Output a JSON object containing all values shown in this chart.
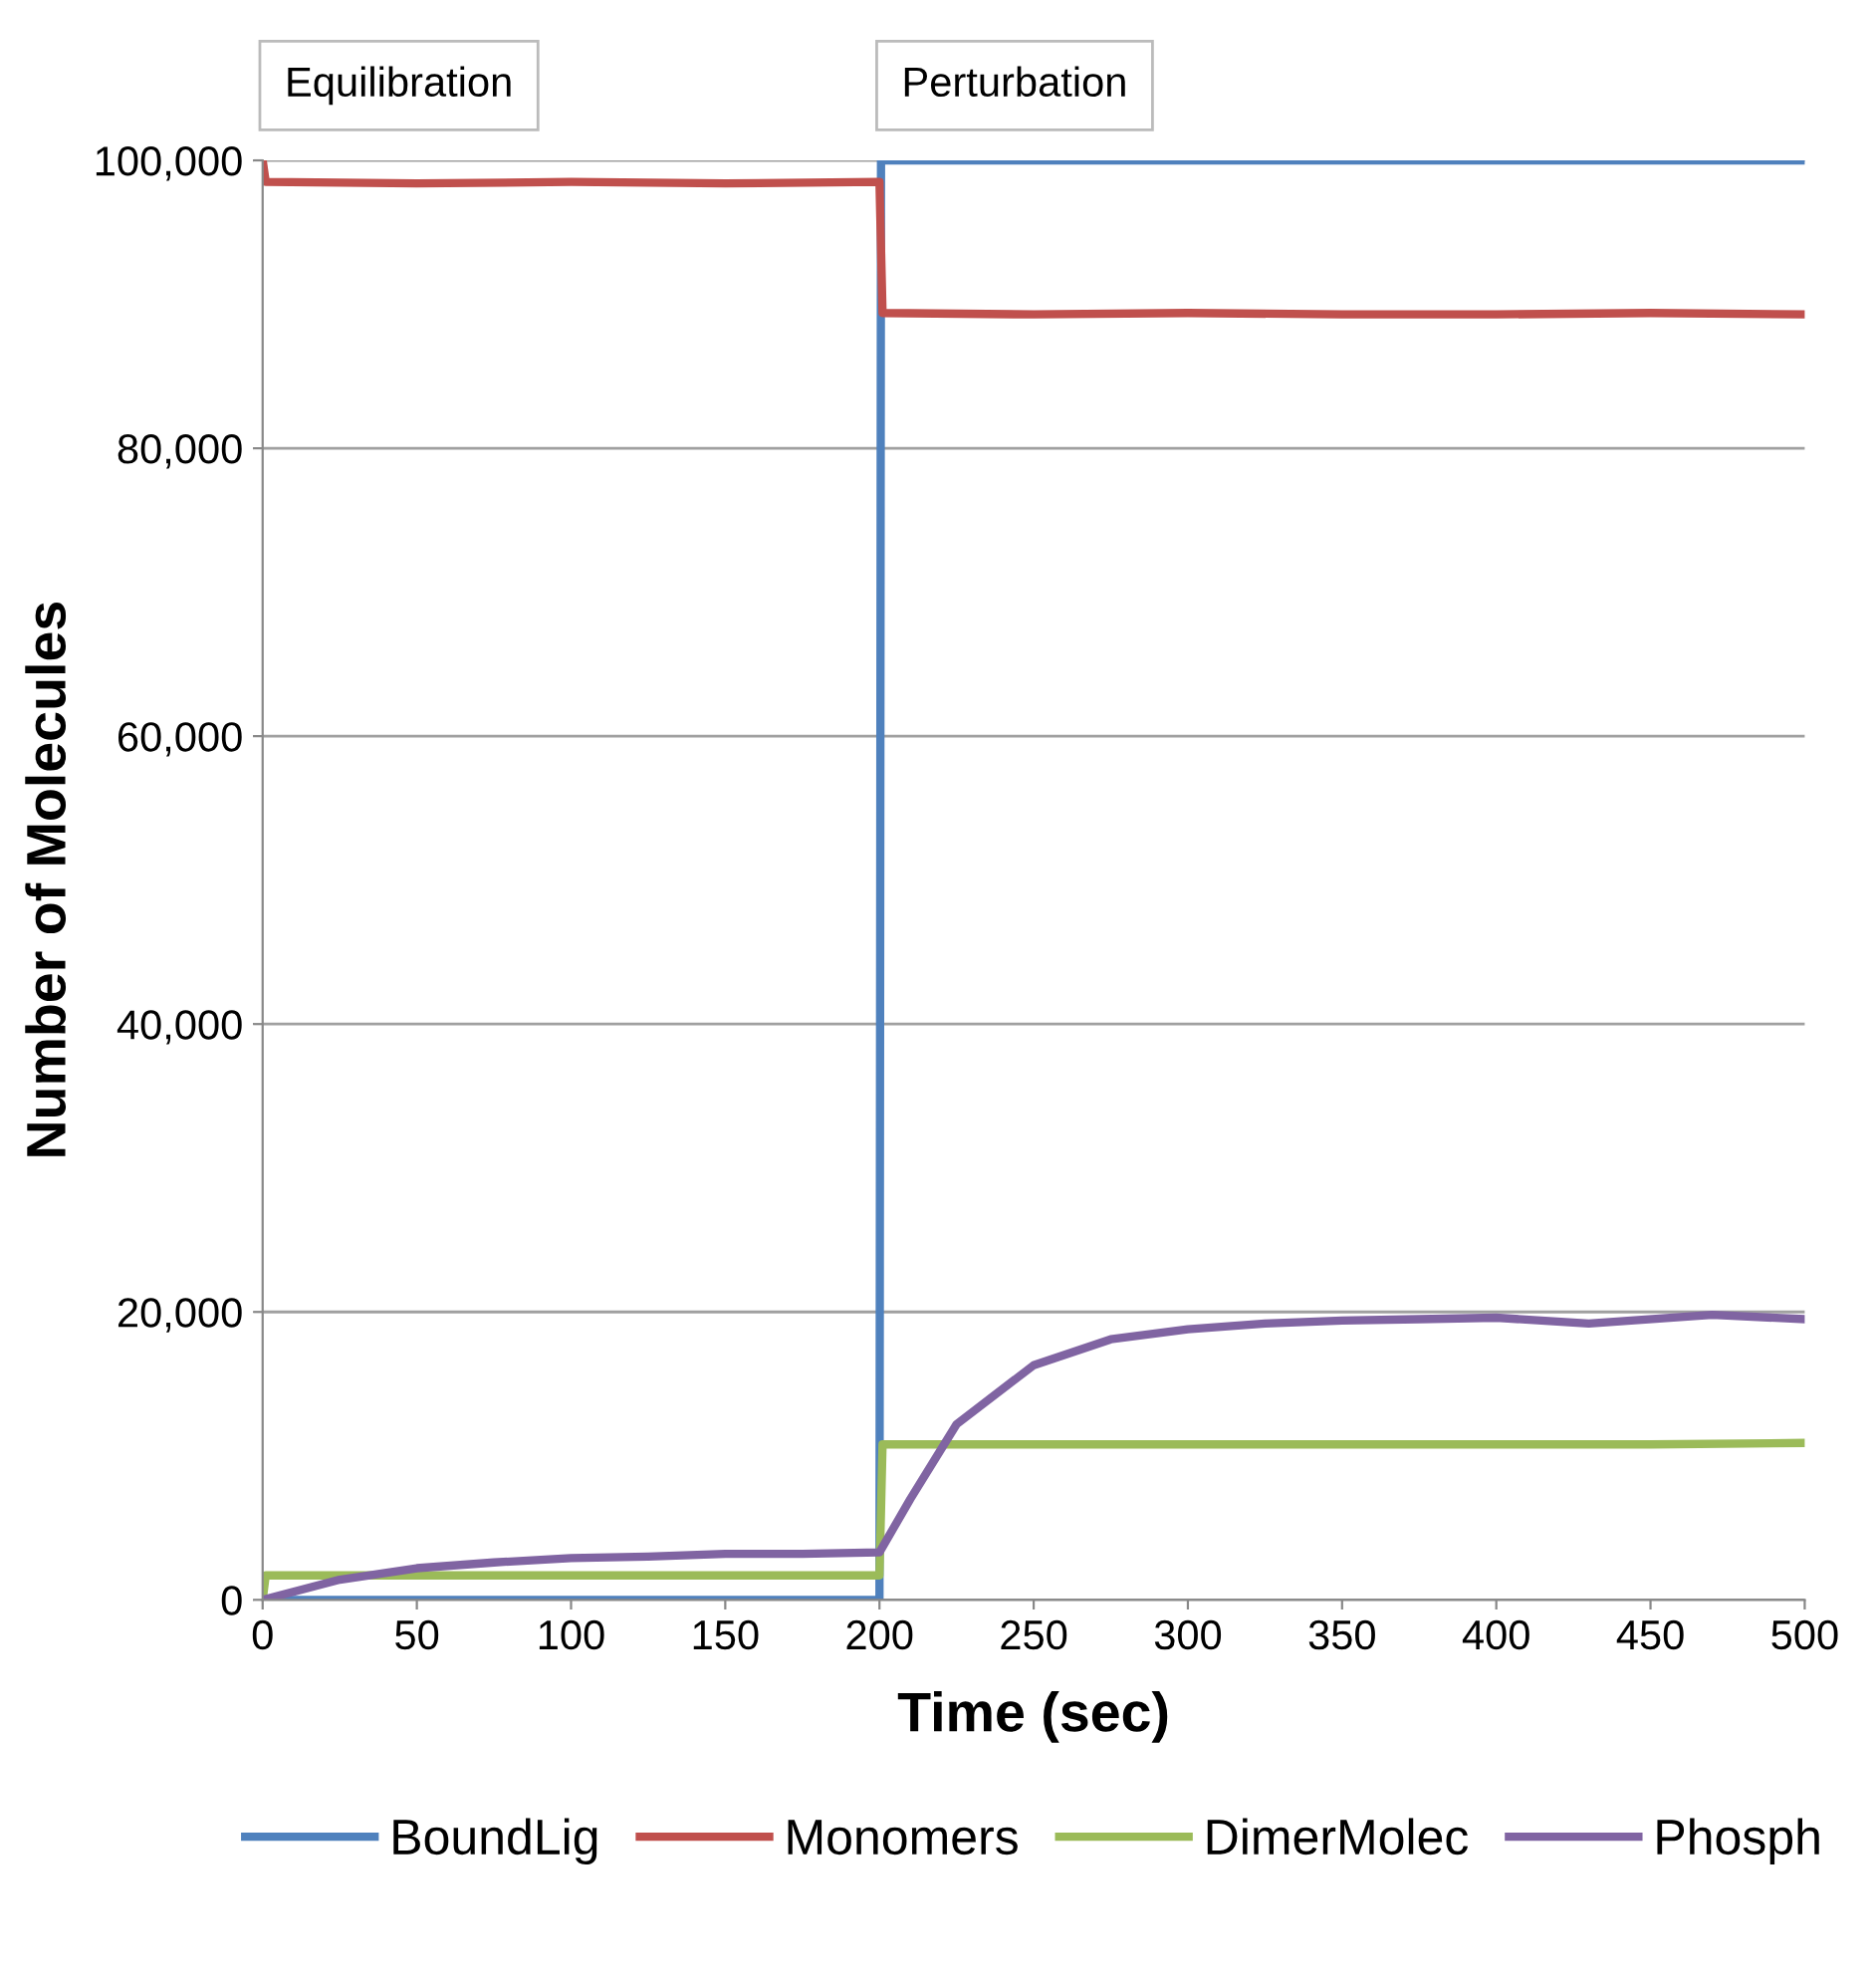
{
  "chart_data": {
    "type": "line",
    "xlabel": "Time (sec)",
    "ylabel": "Number of Molecules",
    "xlim": [
      0,
      500
    ],
    "xticks": [
      0,
      50,
      100,
      150,
      200,
      250,
      300,
      350,
      400,
      450,
      500
    ],
    "ylim": [
      0,
      100000
    ],
    "yticks": [
      {
        "value": 0,
        "label": "0"
      },
      {
        "value": 20000,
        "label": "20,000"
      },
      {
        "value": 40000,
        "label": "40,000"
      },
      {
        "value": 60000,
        "label": "60,000"
      },
      {
        "value": 80000,
        "label": "80,000"
      },
      {
        "value": 100000,
        "label": "100,000"
      }
    ],
    "grid": "y",
    "legend": "bottom",
    "marker": "none",
    "line_style": "solid",
    "annotations": [
      "Equilibration",
      "Perturbation"
    ],
    "series": [
      {
        "name": "BoundLig",
        "color": "#4f81bd",
        "x": [
          0,
          200,
          200.5,
          500
        ],
        "values": [
          0,
          0,
          100000,
          100000
        ]
      },
      {
        "name": "Monomers",
        "color": "#c0504d",
        "x": [
          0,
          1,
          50,
          100,
          150,
          200,
          201,
          250,
          300,
          350,
          400,
          450,
          500
        ],
        "values": [
          100000,
          98500,
          98400,
          98500,
          98400,
          98500,
          89400,
          89300,
          89400,
          89300,
          89300,
          89400,
          89300
        ]
      },
      {
        "name": "DimerMolec",
        "color": "#9bbb59",
        "x": [
          0,
          1,
          50,
          100,
          150,
          200,
          201,
          250,
          300,
          350,
          400,
          450,
          500
        ],
        "values": [
          0,
          1700,
          1700,
          1700,
          1700,
          1700,
          10800,
          10800,
          10800,
          10800,
          10800,
          10800,
          10900
        ]
      },
      {
        "name": "Phosph",
        "color": "#8064a2",
        "x": [
          0,
          25,
          50,
          75,
          100,
          125,
          150,
          175,
          200,
          210,
          225,
          250,
          275,
          300,
          325,
          350,
          375,
          400,
          430,
          470,
          500
        ],
        "values": [
          0,
          1400,
          2200,
          2600,
          2900,
          3000,
          3200,
          3200,
          3300,
          7000,
          12200,
          16300,
          18100,
          18800,
          19200,
          19400,
          19500,
          19600,
          19200,
          19800,
          19500
        ]
      }
    ]
  }
}
